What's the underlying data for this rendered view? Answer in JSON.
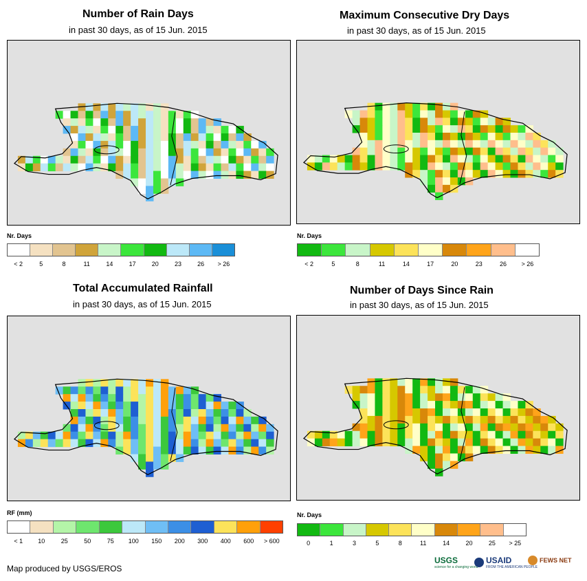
{
  "panels": [
    {
      "title": "Number of Rain Days",
      "subtitle": "in past 30 days, as of 15 Jun. 2015",
      "legend_title": "Nr. Days",
      "legend_colors": [
        "#ffffff",
        "#f5e1c1",
        "#e2c490",
        "#d0a43a",
        "#c8f5c8",
        "#3ce63c",
        "#12b912",
        "#bce8f8",
        "#5db9f5",
        "#1a8fd8"
      ],
      "tick_labels": [
        "< 2",
        "5",
        "8",
        "11",
        "14",
        "17",
        "20",
        "23",
        "26",
        "> 26"
      ],
      "grid_colors": [
        "#e2c490",
        "#d0a43a",
        "#c8f5c8",
        "#3ce63c",
        "#12b912",
        "#5db9f5",
        "#bce8f8",
        "#f5e1c1",
        "#ffffff"
      ]
    },
    {
      "title": "Maximum Consecutive Dry Days",
      "subtitle": "in past 30 days, as of 15 Jun. 2015",
      "legend_title": "Nr. Days",
      "legend_colors": [
        "#12b912",
        "#3ce63c",
        "#c8f5c8",
        "#d6c800",
        "#fce35a",
        "#ffffc8",
        "#d8880a",
        "#ffa41a",
        "#ffbe8c",
        "#ffffff"
      ],
      "tick_labels": [
        "< 2",
        "5",
        "8",
        "11",
        "14",
        "17",
        "20",
        "23",
        "26",
        "> 26"
      ],
      "grid_colors": [
        "#3ce63c",
        "#12b912",
        "#c8f5c8",
        "#d6c800",
        "#fce35a",
        "#ffffc8",
        "#d8880a",
        "#ffbe8c"
      ]
    },
    {
      "title": "Total Accumulated Rainfall",
      "subtitle": "in past 30 days, as of 15 Jun. 2015",
      "legend_title": "RF (mm)",
      "legend_colors": [
        "#ffffff",
        "#f5e1c1",
        "#b4f5a8",
        "#6ee66e",
        "#3cc83c",
        "#bce8f8",
        "#6fbef5",
        "#3c8fe6",
        "#1e5fd2",
        "#fce35a",
        "#ffa00a",
        "#ff4000"
      ],
      "tick_labels": [
        "< 1",
        "10",
        "25",
        "50",
        "75",
        "100",
        "150",
        "200",
        "300",
        "400",
        "600",
        "> 600"
      ],
      "grid_colors": [
        "#6ee66e",
        "#b4f5a8",
        "#bce8f8",
        "#6fbef5",
        "#3c8fe6",
        "#1e5fd2",
        "#fce35a",
        "#ffa00a",
        "#3cc83c"
      ]
    },
    {
      "title": "Number of Days Since Rain",
      "subtitle": "in past 30 days, as of 15 Jun. 2015",
      "legend_title": "Nr. Days",
      "legend_colors": [
        "#12b912",
        "#3ce63c",
        "#c8f5c8",
        "#d6c800",
        "#fce35a",
        "#ffffc8",
        "#d8880a",
        "#ffa41a",
        "#ffbe8c",
        "#ffffff"
      ],
      "tick_labels": [
        "0",
        "1",
        "3",
        "5",
        "8",
        "11",
        "14",
        "20",
        "25",
        "> 25"
      ],
      "grid_colors": [
        "#12b912",
        "#12b912",
        "#d6c800",
        "#ffffc8",
        "#ffa41a",
        "#fce35a",
        "#c8f5c8",
        "#d8880a"
      ]
    }
  ],
  "credit": "Map produced by USGS/EROS",
  "logos": {
    "usgs": "USGS",
    "usgs_tagline": "science for a changing world",
    "usaid": "USAID",
    "usaid_tagline": "FROM THE AMERICAN PEOPLE",
    "fewsnet": "FEWS NET"
  }
}
